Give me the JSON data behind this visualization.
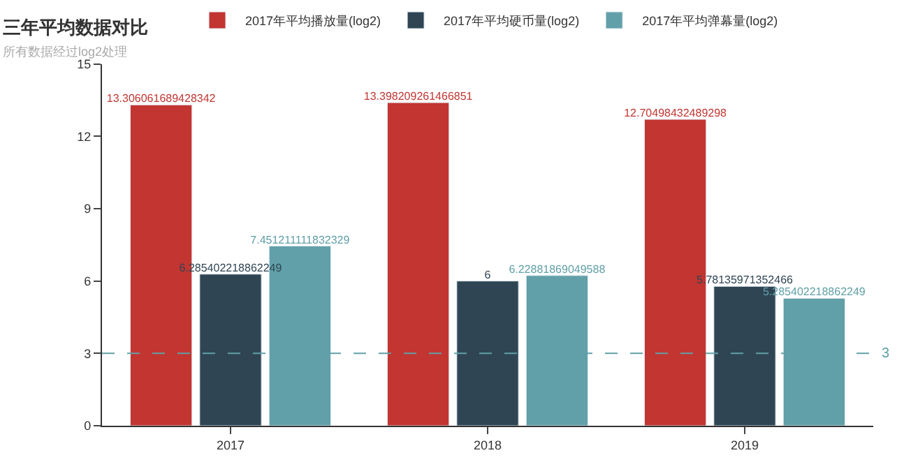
{
  "chart_data": {
    "type": "bar",
    "title": "三年平均数据对比",
    "subtitle": "所有数据经过log2处理",
    "categories": [
      "2017",
      "2018",
      "2019"
    ],
    "series": [
      {
        "name": "2017年平均播放量(log2)",
        "color": "#c23531",
        "values": [
          13.306061689428342,
          13.398209261466851,
          12.70498432489298
        ]
      },
      {
        "name": "2017年平均硬币量(log2)",
        "color": "#2f4554",
        "values": [
          6.285402218862249,
          6,
          5.78135971352466
        ]
      },
      {
        "name": "2017年平均弹幕量(log2)",
        "color": "#61a0a8",
        "values": [
          7.451211111832329,
          6.22881869049588,
          5.285402218862249
        ]
      }
    ],
    "ylim": [
      0,
      15
    ],
    "yticks": [
      0,
      3,
      6,
      9,
      12,
      15
    ],
    "legend": "top",
    "data_labels": true,
    "ref_lines": [
      {
        "axis": "y",
        "value": 3,
        "label": "3",
        "color": "#61a0a8",
        "line_style": "dashed"
      }
    ]
  }
}
